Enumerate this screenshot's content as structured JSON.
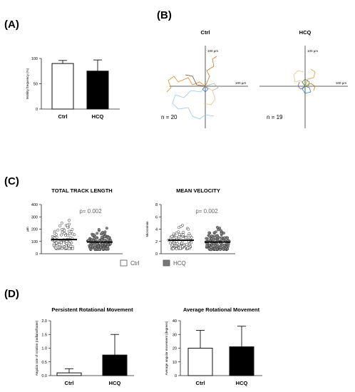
{
  "panels": {
    "A": "(A)",
    "B": "(B)",
    "C": "(C)",
    "D": "(D)"
  },
  "colors": {
    "ctrl_fill": "#ffffff",
    "hcq_fill": "#000000",
    "scatter_hcq": "#888888"
  },
  "tracks": {
    "ctrl": {
      "title": "Ctrl",
      "n_label": "n = 20",
      "scale_y": "100 µm",
      "scale_x": "100 µm"
    },
    "hcq": {
      "title": "HCQ",
      "n_label": "n = 19",
      "scale_y": "100 µm",
      "scale_x": "100 µm"
    }
  },
  "legend": {
    "ctrl": "Ctrl",
    "hcq": "HCQ"
  },
  "chart_data": [
    {
      "id": "A",
      "type": "bar",
      "title": "",
      "ylabel": "Motility frequency (%)",
      "categories": [
        "Ctrl",
        "HCQ"
      ],
      "values": [
        90,
        75
      ],
      "errors": [
        6,
        22
      ],
      "ylim": [
        0,
        100
      ],
      "yticks": [
        "0",
        "50",
        "100"
      ]
    },
    {
      "id": "C1",
      "type": "scatter",
      "title": "TOTAL TRACK LENGTH",
      "ylabel": "µm",
      "annotation": "p= 0.002",
      "categories": [
        "Ctrl",
        "HCQ"
      ],
      "medians": [
        115,
        95
      ],
      "ylim": [
        0,
        400
      ],
      "yticks": [
        "0",
        "100",
        "200",
        "300",
        "400"
      ]
    },
    {
      "id": "C2",
      "type": "scatter",
      "title": "MEAN VELOCITY",
      "ylabel": "Micron/min",
      "annotation": "p= 0.002",
      "categories": [
        "Ctrl",
        "HCQ"
      ],
      "medians": [
        2.2,
        1.9
      ],
      "ylim": [
        0,
        8
      ],
      "yticks": [
        "0",
        "2",
        "4",
        "6",
        "8"
      ]
    },
    {
      "id": "D1",
      "type": "bar",
      "title": "Persistent Rotational Movement",
      "ylabel": "Angular rate of rotation (radians/frame)",
      "categories": [
        "Ctrl",
        "HCQ"
      ],
      "values": [
        0.1,
        0.75
      ],
      "errors": [
        0.15,
        0.75
      ],
      "ylim": [
        0,
        2.0
      ],
      "yticks": [
        "0.0",
        "0.5",
        "1.0",
        "1.5",
        "2.0"
      ]
    },
    {
      "id": "D2",
      "type": "bar",
      "title": "Average Rotational Movement",
      "ylabel": "Average angular movement (degrees)",
      "categories": [
        "Ctrl",
        "HCQ"
      ],
      "values": [
        20,
        21
      ],
      "errors": [
        13,
        15
      ],
      "ylim": [
        0,
        40
      ],
      "yticks": [
        "0",
        "10",
        "20",
        "30",
        "40"
      ]
    }
  ]
}
